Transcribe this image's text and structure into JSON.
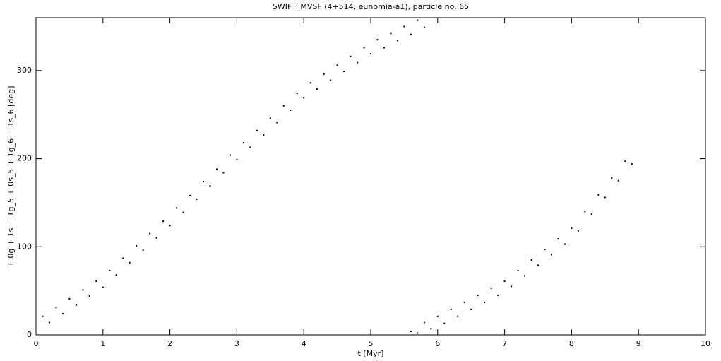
{
  "chart_data": {
    "type": "scatter",
    "title": "SWIFT_MVSF (4+514, eunomia-a1), particle no. 65",
    "xlabel": "t [Myr]",
    "ylabel": "+ 0g + 1s − 1g_5 + 0s_5 + 1g_6 − 1s_6 [deg]",
    "color": "#000000",
    "xlim": [
      0,
      10
    ],
    "ylim": [
      0,
      360
    ],
    "xticks": [
      0,
      1,
      2,
      3,
      4,
      5,
      6,
      7,
      8,
      9,
      10
    ],
    "yticks": [
      0,
      100,
      200,
      300
    ],
    "x": [
      0.1,
      0.2,
      0.3,
      0.4,
      0.5,
      0.6,
      0.7,
      0.8,
      0.9,
      1.0,
      1.1,
      1.2,
      1.3,
      1.4,
      1.5,
      1.6,
      1.7,
      1.8,
      1.9,
      2.0,
      2.1,
      2.2,
      2.3,
      2.4,
      2.5,
      2.6,
      2.7,
      2.8,
      2.9,
      3.0,
      3.1,
      3.2,
      3.3,
      3.4,
      3.5,
      3.6,
      3.7,
      3.8,
      3.9,
      4.0,
      4.1,
      4.2,
      4.3,
      4.4,
      4.5,
      4.6,
      4.7,
      4.8,
      4.9,
      5.0,
      5.1,
      5.2,
      5.3,
      5.4,
      5.5,
      5.6,
      5.7,
      5.8,
      5.6,
      5.7,
      5.8,
      5.9,
      6.0,
      6.1,
      6.2,
      6.3,
      6.4,
      6.5,
      6.6,
      6.7,
      6.8,
      6.9,
      7.0,
      7.1,
      7.2,
      7.3,
      7.4,
      7.5,
      7.6,
      7.7,
      7.8,
      7.9,
      8.0,
      8.1,
      8.2,
      8.3,
      8.4,
      8.5,
      8.6,
      8.7,
      8.8,
      8.9
    ],
    "values": [
      21,
      14,
      31,
      24,
      41,
      34,
      51,
      44,
      61,
      54,
      73,
      68,
      87,
      82,
      101,
      96,
      115,
      110,
      129,
      124,
      144,
      139,
      158,
      154,
      174,
      169,
      188,
      184,
      204,
      199,
      218,
      213,
      232,
      227,
      246,
      241,
      260,
      255,
      274,
      269,
      286,
      279,
      296,
      289,
      306,
      299,
      316,
      309,
      326,
      319,
      335,
      326,
      342,
      334,
      350,
      341,
      357,
      349,
      4,
      2,
      14,
      7,
      21,
      13,
      29,
      21,
      37,
      29,
      45,
      37,
      53,
      45,
      61,
      55,
      73,
      67,
      85,
      79,
      97,
      91,
      109,
      103,
      121,
      118,
      140,
      137,
      159,
      156,
      178,
      175,
      197,
      194
    ]
  }
}
